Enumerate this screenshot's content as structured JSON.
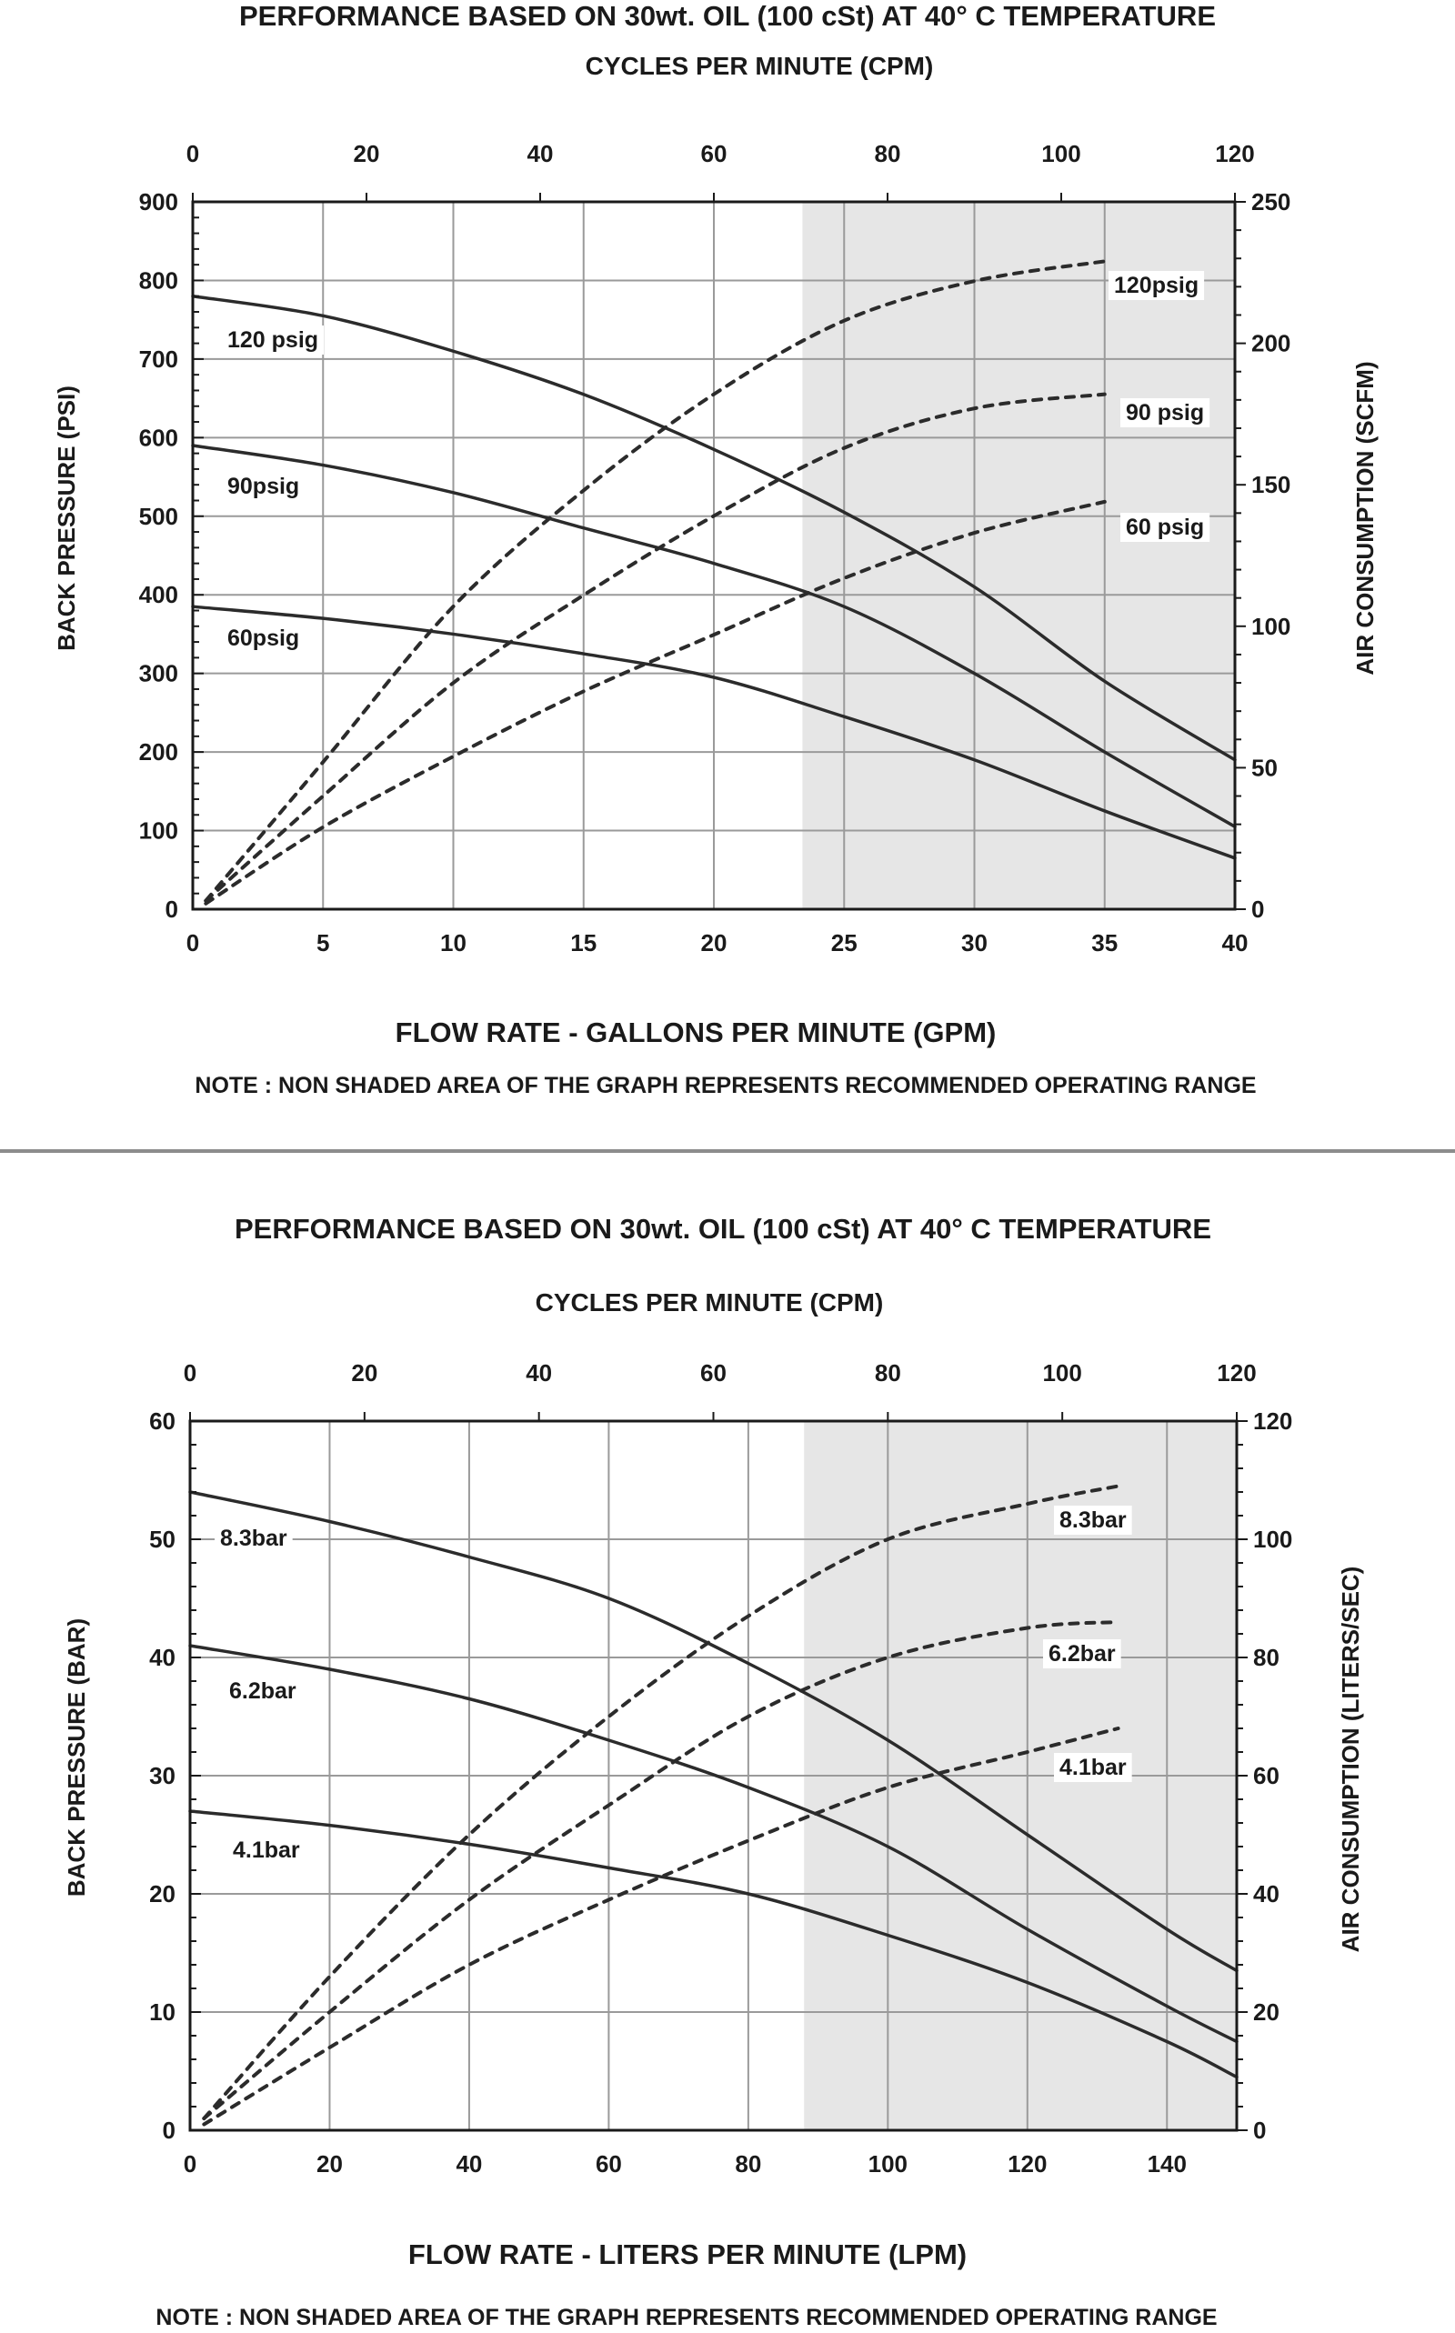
{
  "divider_color": "#8c8c8c",
  "colors": {
    "shade": "#e6e6e6",
    "grid": "#9a9a9a",
    "frame": "#1a1a1a",
    "curve": "#2b2b2b"
  },
  "chart_data": [
    {
      "type": "line",
      "title": "PERFORMANCE  BASED ON 30wt. OIL (100 cSt) AT 40° C TEMPERATURE",
      "xlabel_top": "CYCLES PER MINUTE (CPM)",
      "xlabel": "FLOW RATE - GALLONS PER MINUTE (GPM)",
      "ylabel": "BACK PRESSURE  (PSI)",
      "ylabel_right": "AIR CONSUMPTION  (SCFM)",
      "note": "NOTE : NON SHADED AREA OF THE GRAPH REPRESENTS RECOMMENDED OPERATING RANGE",
      "xlim": [
        0,
        40
      ],
      "ylim": [
        0,
        900
      ],
      "y2lim": [
        0,
        250
      ],
      "x2lim": [
        0,
        120
      ],
      "xticks": [
        0,
        5,
        10,
        15,
        20,
        25,
        30,
        35,
        40
      ],
      "yticks": [
        0,
        100,
        200,
        300,
        400,
        500,
        600,
        700,
        800,
        900
      ],
      "y2ticks": [
        0,
        50,
        100,
        150,
        200,
        250
      ],
      "x2ticks": [
        0,
        20,
        40,
        60,
        80,
        100,
        120
      ],
      "grid": true,
      "shaded_region_x": [
        23.4,
        40
      ],
      "series": [
        {
          "name": "120 psig",
          "style": "solid",
          "axis": "left",
          "x": [
            0,
            5,
            10,
            15,
            20,
            25,
            30,
            35,
            40
          ],
          "y": [
            780,
            755,
            710,
            655,
            585,
            505,
            410,
            290,
            190
          ]
        },
        {
          "name": "90psig",
          "style": "solid",
          "axis": "left",
          "x": [
            0,
            5,
            10,
            15,
            20,
            25,
            30,
            35,
            40
          ],
          "y": [
            590,
            565,
            530,
            485,
            440,
            385,
            300,
            200,
            105
          ]
        },
        {
          "name": "60psig",
          "style": "solid",
          "axis": "left",
          "x": [
            0,
            5,
            10,
            15,
            20,
            25,
            30,
            35,
            40
          ],
          "y": [
            385,
            370,
            350,
            325,
            295,
            245,
            190,
            125,
            65
          ]
        },
        {
          "name": "120psig",
          "style": "dashed",
          "axis": "right",
          "x": [
            0.5,
            5,
            10,
            15,
            20,
            25,
            30,
            35
          ],
          "y": [
            3,
            52,
            107,
            148,
            182,
            208,
            222,
            229
          ]
        },
        {
          "name": "90 psig",
          "style": "dashed",
          "axis": "right",
          "x": [
            0.5,
            5,
            10,
            15,
            20,
            25,
            30,
            35
          ],
          "y": [
            3,
            40,
            80,
            111,
            139,
            163,
            177,
            182
          ]
        },
        {
          "name": "60 psig",
          "style": "dashed",
          "axis": "right",
          "x": [
            0.5,
            5,
            10,
            15,
            20,
            25,
            30,
            35
          ],
          "y": [
            2,
            29,
            54,
            77,
            97,
            117,
            133,
            144
          ]
        }
      ]
    },
    {
      "type": "line",
      "title": "PERFORMANCE  BASED ON 30wt. OIL (100 cSt) AT 40° C TEMPERATURE",
      "xlabel_top": "CYCLES PER MINUTE (CPM)",
      "xlabel": "FLOW RATE - LITERS PER MINUTE (LPM)",
      "ylabel": "BACK PRESSURE (BAR)",
      "ylabel_right": "AIR CONSUMPTION  (LITERS/SEC)",
      "note": "NOTE : NON SHADED AREA OF THE GRAPH REPRESENTS RECOMMENDED OPERATING RANGE",
      "xlim": [
        0,
        150
      ],
      "ylim": [
        0,
        60
      ],
      "y2lim": [
        0,
        120
      ],
      "x2lim": [
        0,
        120
      ],
      "xticks": [
        0,
        20,
        40,
        60,
        80,
        100,
        120,
        140
      ],
      "yticks": [
        0,
        10,
        20,
        30,
        40,
        50,
        60
      ],
      "y2ticks": [
        0,
        20,
        40,
        60,
        80,
        100,
        120
      ],
      "x2ticks": [
        0,
        20,
        40,
        60,
        80,
        100,
        120
      ],
      "grid": true,
      "shaded_region_x": [
        88,
        150
      ],
      "series": [
        {
          "name": "8.3bar",
          "style": "solid",
          "axis": "left",
          "x": [
            0,
            20,
            40,
            60,
            80,
            100,
            120,
            140,
            150
          ],
          "y": [
            54,
            51.5,
            48.5,
            45,
            39.5,
            33,
            25,
            17,
            13.5
          ]
        },
        {
          "name": "6.2bar",
          "style": "solid",
          "axis": "left",
          "x": [
            0,
            20,
            40,
            60,
            80,
            100,
            120,
            140,
            150
          ],
          "y": [
            41,
            39,
            36.5,
            33,
            29,
            24,
            17,
            10.5,
            7.5
          ]
        },
        {
          "name": "4.1bar",
          "style": "solid",
          "axis": "left",
          "x": [
            0,
            20,
            40,
            60,
            80,
            100,
            120,
            140,
            150
          ],
          "y": [
            27,
            25.8,
            24.2,
            22.2,
            20,
            16.5,
            12.5,
            7.5,
            4.5
          ]
        },
        {
          "name": "8.3bar",
          "style": "dashed",
          "axis": "right",
          "x": [
            2,
            20,
            40,
            60,
            80,
            100,
            120,
            133
          ],
          "y": [
            2,
            26,
            50,
            70,
            87,
            100,
            106,
            109
          ]
        },
        {
          "name": "6.2bar",
          "style": "dashed",
          "axis": "right",
          "x": [
            2,
            20,
            40,
            60,
            80,
            100,
            120,
            133
          ],
          "y": [
            2,
            20,
            39,
            55,
            70,
            80,
            85,
            86
          ]
        },
        {
          "name": "4.1bar",
          "style": "dashed",
          "axis": "right",
          "x": [
            2,
            20,
            40,
            60,
            80,
            100,
            120,
            133
          ],
          "y": [
            1,
            14,
            28,
            39,
            49,
            58,
            64,
            68
          ]
        }
      ]
    }
  ]
}
